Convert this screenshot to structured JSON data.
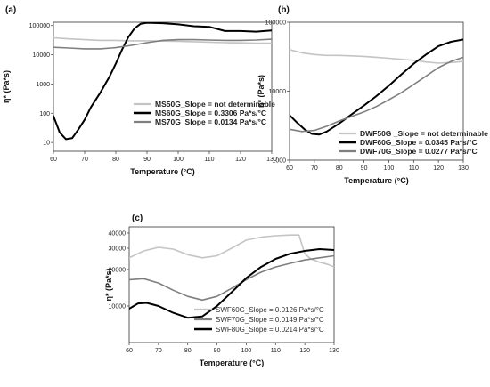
{
  "chart_data": [
    {
      "type": "line",
      "panel_label": "(a)",
      "xlabel": "Temperature (°C)",
      "ylabel": "η* (Pa*s)",
      "y_scale": "log",
      "xlim": [
        60,
        130
      ],
      "ylim": [
        5,
        130000
      ],
      "x_ticks": [
        60,
        70,
        80,
        90,
        100,
        110,
        120,
        130
      ],
      "y_ticks": [
        {
          "value": 10,
          "label": "10"
        },
        {
          "value": 100,
          "label": "100"
        },
        {
          "value": 1000,
          "label": "1000"
        },
        {
          "value": 10000,
          "label": "10000"
        },
        {
          "value": 100000,
          "label": "100000"
        }
      ],
      "legend_position": "bottom-right",
      "series": [
        {
          "name": "MS50G_Slope = not determinable",
          "color": "#c4c4c4",
          "width": 1.6,
          "x": [
            60,
            65,
            70,
            75,
            80,
            85,
            90,
            95,
            100,
            105,
            110,
            115,
            120,
            125,
            130
          ],
          "y": [
            38000,
            35000,
            33000,
            31000,
            31000,
            30000,
            30000,
            29500,
            29000,
            28000,
            27000,
            26000,
            25500,
            25000,
            25000
          ]
        },
        {
          "name": "MS60G_Slope = 0.3306 Pa*s/°C",
          "color": "#000000",
          "width": 2.0,
          "x": [
            60,
            62,
            64,
            66,
            68,
            70,
            72,
            75,
            78,
            80,
            82,
            84,
            86,
            88,
            90,
            95,
            100,
            105,
            110,
            115,
            120,
            125,
            130
          ],
          "y": [
            80,
            22,
            13,
            14,
            28,
            60,
            160,
            500,
            1800,
            5000,
            15000,
            40000,
            80000,
            115000,
            125000,
            120000,
            110000,
            95000,
            90000,
            65000,
            65000,
            62000,
            68000
          ]
        },
        {
          "name": "MS70G_Slope = 0.0134 Pa*s/°C",
          "color": "#7f7f7f",
          "width": 1.6,
          "x": [
            60,
            65,
            70,
            75,
            80,
            85,
            90,
            95,
            100,
            105,
            110,
            115,
            120,
            125,
            130
          ],
          "y": [
            18000,
            17000,
            16000,
            16000,
            17500,
            21000,
            26000,
            31000,
            33000,
            33000,
            32000,
            31000,
            31000,
            32000,
            34000
          ]
        }
      ]
    },
    {
      "type": "line",
      "panel_label": "(b)",
      "xlabel": "Temperature (°C)",
      "ylabel": "η* (Pa*s)",
      "y_scale": "log",
      "xlim": [
        60,
        130
      ],
      "ylim": [
        1000,
        100000
      ],
      "x_ticks": [
        60,
        70,
        80,
        90,
        100,
        110,
        120,
        130
      ],
      "y_ticks": [
        {
          "value": 1000,
          "label": "1000"
        },
        {
          "value": 10000,
          "label": "10000"
        },
        {
          "value": 100000,
          "label": "100000"
        }
      ],
      "legend_position": "bottom-right",
      "series": [
        {
          "name": "DWF50G _Slope = not determinable",
          "color": "#c4c4c4",
          "width": 1.6,
          "x": [
            60,
            65,
            70,
            75,
            80,
            85,
            90,
            95,
            100,
            105,
            110,
            115,
            120,
            125,
            130
          ],
          "y": [
            40000,
            36000,
            34000,
            33000,
            33000,
            32500,
            32000,
            31000,
            30000,
            29000,
            28000,
            26500,
            25500,
            26000,
            27000
          ]
        },
        {
          "name": "DWF60G_Slope = 0.0345 Pa*s/°C",
          "color": "#000000",
          "width": 2.0,
          "x": [
            60,
            63,
            66,
            69,
            72,
            75,
            80,
            85,
            90,
            95,
            100,
            105,
            110,
            115,
            120,
            125,
            130
          ],
          "y": [
            4500,
            3500,
            2800,
            2400,
            2350,
            2600,
            3400,
            4600,
            6200,
            8500,
            12000,
            17500,
            25000,
            34000,
            45000,
            52000,
            56000
          ]
        },
        {
          "name": "DWF70G_Slope = 0.0277 Pa*s/°C",
          "color": "#7f7f7f",
          "width": 1.6,
          "x": [
            60,
            65,
            70,
            75,
            80,
            85,
            90,
            95,
            100,
            105,
            110,
            115,
            120,
            125,
            130
          ],
          "y": [
            2800,
            2600,
            2700,
            3100,
            3700,
            4300,
            5000,
            6000,
            7500,
            9500,
            12500,
            16500,
            22000,
            27000,
            31000
          ]
        }
      ]
    },
    {
      "type": "line",
      "panel_label": "(c)",
      "xlabel": "Temperature (°C)",
      "ylabel": "η* (Pa*s)",
      "y_scale": "log",
      "xlim": [
        60,
        130
      ],
      "ylim": [
        5000,
        45000
      ],
      "x_ticks": [
        60,
        70,
        80,
        90,
        100,
        110,
        120,
        130
      ],
      "y_ticks": [
        {
          "value": 10000,
          "label": "10000"
        },
        {
          "value": 20000,
          "label": "20000"
        },
        {
          "value": 30000,
          "label": "30000"
        },
        {
          "value": 40000,
          "label": "40000"
        }
      ],
      "legend_position": "bottom-right",
      "series": [
        {
          "name": "SWF60G_Slope = 0.0126 Pa*s/°C",
          "color": "#c4c4c4",
          "width": 1.6,
          "x": [
            60,
            65,
            70,
            75,
            80,
            85,
            90,
            95,
            100,
            105,
            110,
            115,
            118,
            120,
            122,
            125,
            128,
            130
          ],
          "y": [
            25000,
            28500,
            30500,
            29500,
            26500,
            25000,
            26000,
            30000,
            35000,
            37000,
            38000,
            38500,
            38500,
            27000,
            24500,
            23000,
            22000,
            21000
          ]
        },
        {
          "name": "SWF70G_Slope = 0.0149 Pa*s/°C",
          "color": "#7f7f7f",
          "width": 1.6,
          "x": [
            60,
            65,
            70,
            75,
            80,
            85,
            90,
            95,
            100,
            105,
            110,
            115,
            120,
            125,
            130
          ],
          "y": [
            16500,
            16800,
            15500,
            13500,
            12000,
            11200,
            12000,
            14000,
            16500,
            19000,
            21000,
            22500,
            24000,
            25000,
            26000
          ]
        },
        {
          "name": "SWF80G_Slope = 0.0214 Pa*s/°C",
          "color": "#000000",
          "width": 2.0,
          "x": [
            60,
            63,
            66,
            70,
            75,
            80,
            85,
            90,
            95,
            100,
            105,
            110,
            115,
            120,
            125,
            130
          ],
          "y": [
            9500,
            10500,
            10600,
            10000,
            8800,
            8000,
            8200,
            10000,
            13000,
            17000,
            21000,
            24500,
            27000,
            28500,
            29500,
            29000
          ]
        }
      ]
    }
  ]
}
